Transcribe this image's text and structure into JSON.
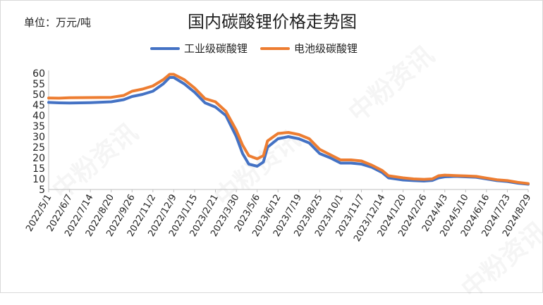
{
  "chart_data": {
    "type": "line",
    "title": "国内碳酸锂价格走势图",
    "unit_label": "单位：万元/吨",
    "ylim": [
      5,
      60
    ],
    "yticks": [
      5,
      10,
      15,
      20,
      25,
      30,
      35,
      40,
      45,
      50,
      55,
      60
    ],
    "grid": false,
    "legend_position": "top",
    "x_categories": [
      "2022/5/1",
      "2022/6/7",
      "2022/7/14",
      "2022/8/20",
      "2022/9/26",
      "2022/11/2",
      "2022/12/9",
      "2023/1/15",
      "2023/2/21",
      "2023/3/30",
      "2023/5/6",
      "2023/6/12",
      "2023/7/19",
      "2023/8/25",
      "2023/10/1",
      "2023/11/7",
      "2023/12/14",
      "2024/1/20",
      "2024/2/26",
      "2024/4/3",
      "2024/5/10",
      "2024/6/16",
      "2024/7/23",
      "2024/8/29"
    ],
    "series": [
      {
        "name": "工业级碳酸锂",
        "color": "#4472C4",
        "values": [
          [
            0,
            46.2
          ],
          [
            0.5,
            46
          ],
          [
            1,
            45.9
          ],
          [
            2,
            46.1
          ],
          [
            3,
            46.5
          ],
          [
            3.6,
            47.5
          ],
          [
            4,
            49
          ],
          [
            4.5,
            50
          ],
          [
            5,
            51.5
          ],
          [
            5.5,
            55
          ],
          [
            5.8,
            58
          ],
          [
            6,
            58
          ],
          [
            6.5,
            55
          ],
          [
            7,
            51
          ],
          [
            7.5,
            46
          ],
          [
            8,
            44
          ],
          [
            8.5,
            40
          ],
          [
            9,
            30
          ],
          [
            9.3,
            22
          ],
          [
            9.6,
            17
          ],
          [
            10,
            16
          ],
          [
            10.3,
            18
          ],
          [
            10.5,
            25
          ],
          [
            11,
            29
          ],
          [
            11.5,
            30
          ],
          [
            12,
            29
          ],
          [
            12.5,
            27
          ],
          [
            13,
            22
          ],
          [
            13.5,
            20
          ],
          [
            14,
            17.5
          ],
          [
            14.5,
            17.5
          ],
          [
            15,
            17
          ],
          [
            15.5,
            15.5
          ],
          [
            16,
            13
          ],
          [
            16.3,
            10.5
          ],
          [
            17,
            9.5
          ],
          [
            17.5,
            9.2
          ],
          [
            18,
            9
          ],
          [
            18.4,
            9.3
          ],
          [
            18.7,
            10.5
          ],
          [
            19,
            11
          ],
          [
            19.5,
            11.2
          ],
          [
            20,
            11
          ],
          [
            20.5,
            10.8
          ],
          [
            21,
            10
          ],
          [
            21.5,
            9.2
          ],
          [
            22,
            8.8
          ],
          [
            22.5,
            8
          ],
          [
            23,
            7.5
          ]
        ]
      },
      {
        "name": "电池级碳酸锂",
        "color": "#ED7D31",
        "values": [
          [
            0,
            48.3
          ],
          [
            0.5,
            48.2
          ],
          [
            1,
            48.4
          ],
          [
            2,
            48.5
          ],
          [
            3,
            48.6
          ],
          [
            3.6,
            49.5
          ],
          [
            4,
            51.5
          ],
          [
            4.5,
            52.5
          ],
          [
            5,
            54
          ],
          [
            5.5,
            57
          ],
          [
            5.8,
            59.5
          ],
          [
            6,
            59.5
          ],
          [
            6.5,
            57
          ],
          [
            7,
            53
          ],
          [
            7.5,
            48
          ],
          [
            8,
            46.5
          ],
          [
            8.5,
            42
          ],
          [
            9,
            33
          ],
          [
            9.3,
            26
          ],
          [
            9.6,
            21
          ],
          [
            10,
            19.5
          ],
          [
            10.3,
            21
          ],
          [
            10.5,
            28
          ],
          [
            11,
            31.5
          ],
          [
            11.5,
            32
          ],
          [
            12,
            31
          ],
          [
            12.5,
            29
          ],
          [
            13,
            24
          ],
          [
            13.5,
            21.5
          ],
          [
            14,
            19
          ],
          [
            14.5,
            19
          ],
          [
            15,
            18.5
          ],
          [
            15.5,
            16.5
          ],
          [
            16,
            14
          ],
          [
            16.3,
            11.5
          ],
          [
            17,
            10.5
          ],
          [
            17.5,
            10
          ],
          [
            18,
            9.8
          ],
          [
            18.4,
            10
          ],
          [
            18.7,
            11.5
          ],
          [
            19,
            11.8
          ],
          [
            19.5,
            11.6
          ],
          [
            20,
            11.4
          ],
          [
            20.5,
            11.2
          ],
          [
            21,
            10.4
          ],
          [
            21.5,
            9.6
          ],
          [
            22,
            9.2
          ],
          [
            22.5,
            8.4
          ],
          [
            23,
            7.8
          ]
        ]
      }
    ]
  },
  "watermarks": [
    "中粉资讯",
    "中粉资讯",
    "中粉资讯",
    "中粉资讯"
  ]
}
